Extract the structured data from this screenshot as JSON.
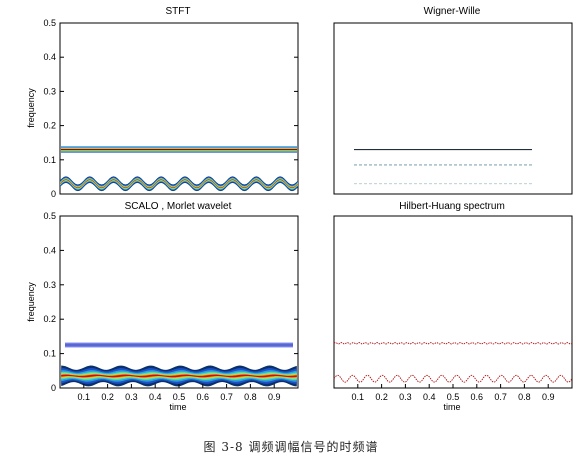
{
  "figure": {
    "caption": "图 3-8 调频调幅信号的时频谱"
  },
  "chart_data": [
    {
      "type": "heatmap",
      "title": "STFT",
      "xlabel": "",
      "ylabel": "frequency",
      "xlim": [
        0,
        1
      ],
      "ylim": [
        0,
        0.5
      ],
      "yticks": [
        "0",
        "0.1",
        "0.2",
        "0.3",
        "0.4",
        "0.5"
      ],
      "components": [
        {
          "name": "band1",
          "center": 0.13,
          "halfwidth": 0.009,
          "modulation": 0
        },
        {
          "name": "band2",
          "center": 0.03,
          "halfwidth": 0.008,
          "modulation": 0.012,
          "periods": 10
        }
      ]
    },
    {
      "type": "heatmap",
      "title": "Wigner-Wille",
      "xlabel": "",
      "ylabel": "",
      "xlim": [
        0,
        1
      ],
      "ylim": [
        0,
        0.5
      ],
      "components": [
        {
          "name": "line1",
          "center": 0.13
        },
        {
          "name": "line2",
          "center": 0.085
        },
        {
          "name": "line3",
          "center": 0.03
        }
      ]
    },
    {
      "type": "heatmap",
      "title": "SCALO , Morlet wavelet",
      "xlabel": "time",
      "ylabel": "frequency",
      "xlim": [
        0,
        1
      ],
      "ylim": [
        0,
        0.5
      ],
      "xticks": [
        "0.1",
        "0.2",
        "0.3",
        "0.4",
        "0.5",
        "0.6",
        "0.7",
        "0.8",
        "0.9"
      ],
      "yticks": [
        "0",
        "0.1",
        "0.2",
        "0.3",
        "0.4",
        "0.5"
      ],
      "components": [
        {
          "name": "band1",
          "center": 0.125
        },
        {
          "name": "band2",
          "center": 0.035,
          "modulation": 0.006,
          "periods": 8
        }
      ]
    },
    {
      "type": "line",
      "title": "Hilbert-Huang spectrum",
      "xlabel": "time",
      "ylabel": "",
      "xlim": [
        0,
        1
      ],
      "ylim": [
        0,
        0.5
      ],
      "xticks": [
        "0.1",
        "0.2",
        "0.3",
        "0.4",
        "0.5",
        "0.6",
        "0.7",
        "0.8",
        "0.9"
      ],
      "series": [
        {
          "values_desc": "instantaneous frequency approx constant",
          "mean": 0.13,
          "ripple": 0.002,
          "color": "#b01010"
        },
        {
          "values_desc": "oscillating instantaneous frequency",
          "mean": 0.027,
          "ripple": 0.01,
          "periods": 16,
          "color": "#b01010"
        }
      ]
    }
  ]
}
